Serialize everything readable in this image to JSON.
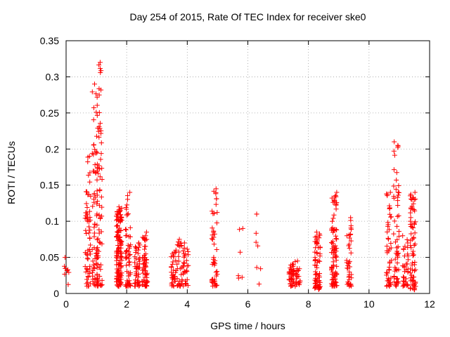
{
  "chart_data": {
    "type": "scatter",
    "title": "Day 254 of 2015, Rate Of TEC Index for receiver ske0",
    "xlabel": "GPS time / hours",
    "ylabel": "ROTI / TECUs",
    "xlim": [
      0,
      12
    ],
    "ylim": [
      0,
      0.35
    ],
    "xticks": [
      0,
      2,
      4,
      6,
      8,
      10,
      12
    ],
    "xtick_labels": [
      "0",
      "2",
      "4",
      "6",
      "8",
      "10",
      "12"
    ],
    "yticks": [
      0,
      0.05,
      0.1,
      0.15,
      0.2,
      0.25,
      0.3,
      0.35
    ],
    "ytick_labels": [
      "0",
      "0.05",
      "0.1",
      "0.15",
      "0.2",
      "0.25",
      "0.3",
      "0.35"
    ],
    "grid": true,
    "marker": "+",
    "color": "#ff0000",
    "clusters": [
      {
        "x": 0.0,
        "ymin": 0.01,
        "ymax": 0.05,
        "n": 8
      },
      {
        "x": 0.72,
        "ymin": 0.01,
        "ymax": 0.19,
        "n": 60
      },
      {
        "x": 0.95,
        "ymin": 0.01,
        "ymax": 0.29,
        "n": 70
      },
      {
        "x": 1.1,
        "ymin": 0.01,
        "ymax": 0.32,
        "n": 75
      },
      {
        "x": 1.75,
        "ymin": 0.01,
        "ymax": 0.12,
        "n": 140
      },
      {
        "x": 2.05,
        "ymin": 0.01,
        "ymax": 0.14,
        "n": 60
      },
      {
        "x": 2.35,
        "ymin": 0.01,
        "ymax": 0.07,
        "n": 50
      },
      {
        "x": 2.6,
        "ymin": 0.01,
        "ymax": 0.085,
        "n": 60
      },
      {
        "x": 3.55,
        "ymin": 0.01,
        "ymax": 0.06,
        "n": 35
      },
      {
        "x": 3.75,
        "ymin": 0.01,
        "ymax": 0.075,
        "n": 30
      },
      {
        "x": 3.95,
        "ymin": 0.01,
        "ymax": 0.07,
        "n": 30
      },
      {
        "x": 4.9,
        "ymin": 0.01,
        "ymax": 0.145,
        "n": 50
      },
      {
        "x": 5.75,
        "ymin": 0.02,
        "ymax": 0.09,
        "n": 6
      },
      {
        "x": 6.35,
        "ymin": 0.01,
        "ymax": 0.11,
        "n": 8
      },
      {
        "x": 7.45,
        "ymin": 0.01,
        "ymax": 0.04,
        "n": 45
      },
      {
        "x": 7.65,
        "ymin": 0.01,
        "ymax": 0.045,
        "n": 25
      },
      {
        "x": 8.3,
        "ymin": 0.005,
        "ymax": 0.085,
        "n": 70
      },
      {
        "x": 8.85,
        "ymin": 0.01,
        "ymax": 0.14,
        "n": 90
      },
      {
        "x": 9.35,
        "ymin": 0.01,
        "ymax": 0.105,
        "n": 40
      },
      {
        "x": 10.65,
        "ymin": 0.01,
        "ymax": 0.14,
        "n": 50
      },
      {
        "x": 10.9,
        "ymin": 0.01,
        "ymax": 0.21,
        "n": 60
      },
      {
        "x": 11.2,
        "ymin": 0.01,
        "ymax": 0.08,
        "n": 35
      },
      {
        "x": 11.45,
        "ymin": 0.005,
        "ymax": 0.14,
        "n": 70
      }
    ]
  }
}
